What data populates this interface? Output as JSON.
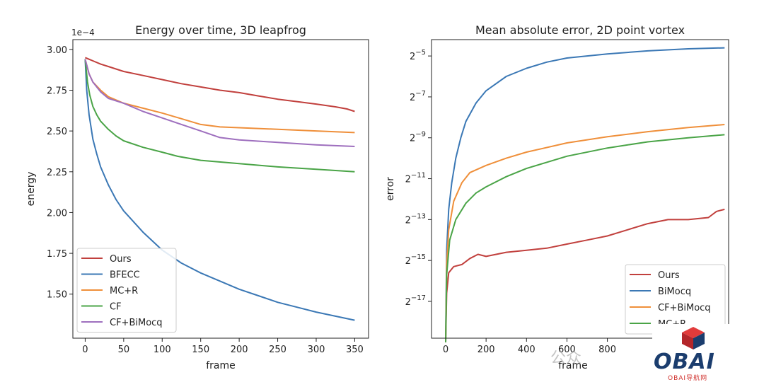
{
  "chart_data": [
    {
      "type": "line",
      "title": "Energy over time, 3D leapfrog",
      "xlabel": "frame",
      "ylabel": "energy",
      "y_multiplier_label": "1e−4",
      "xlim": [
        -16,
        368
      ],
      "ylim": [
        1.23,
        3.06
      ],
      "xticks": [
        0,
        50,
        100,
        150,
        200,
        250,
        300,
        350
      ],
      "xtick_labels": [
        "0",
        "50",
        "100",
        "150",
        "200",
        "250",
        "300",
        "350"
      ],
      "yticks": [
        1.5,
        1.75,
        2.0,
        2.25,
        2.5,
        2.75,
        3.0
      ],
      "ytick_labels": [
        "1.50",
        "1.75",
        "2.00",
        "2.25",
        "2.50",
        "2.75",
        "3.00"
      ],
      "legend_position": "lower-left",
      "series": [
        {
          "name": "Ours",
          "color": "#c1403d",
          "x": [
            0,
            10,
            20,
            30,
            50,
            75,
            100,
            125,
            150,
            175,
            200,
            225,
            250,
            275,
            300,
            325,
            340,
            350
          ],
          "y": [
            2.95,
            2.93,
            2.91,
            2.895,
            2.865,
            2.84,
            2.815,
            2.79,
            2.77,
            2.75,
            2.735,
            2.715,
            2.695,
            2.68,
            2.665,
            2.648,
            2.635,
            2.62
          ]
        },
        {
          "name": "BFECC",
          "color": "#3b78b5",
          "x": [
            0,
            2,
            5,
            10,
            15,
            20,
            30,
            40,
            50,
            75,
            100,
            125,
            150,
            175,
            200,
            225,
            250,
            275,
            300,
            325,
            350
          ],
          "y": [
            2.94,
            2.75,
            2.6,
            2.45,
            2.36,
            2.28,
            2.17,
            2.08,
            2.01,
            1.88,
            1.77,
            1.69,
            1.63,
            1.58,
            1.53,
            1.49,
            1.45,
            1.42,
            1.39,
            1.365,
            1.34
          ]
        },
        {
          "name": "MC+R",
          "color": "#ef8f3a",
          "x": [
            0,
            5,
            10,
            20,
            30,
            50,
            75,
            100,
            125,
            150,
            175,
            200,
            250,
            300,
            350
          ],
          "y": [
            2.94,
            2.85,
            2.8,
            2.75,
            2.71,
            2.67,
            2.64,
            2.61,
            2.575,
            2.54,
            2.525,
            2.52,
            2.51,
            2.5,
            2.49
          ]
        },
        {
          "name": "CF",
          "color": "#4aa447",
          "x": [
            0,
            3,
            6,
            10,
            15,
            20,
            30,
            40,
            50,
            75,
            100,
            120,
            150,
            200,
            250,
            300,
            350
          ],
          "y": [
            2.94,
            2.8,
            2.72,
            2.65,
            2.6,
            2.56,
            2.51,
            2.47,
            2.44,
            2.4,
            2.37,
            2.345,
            2.32,
            2.3,
            2.28,
            2.265,
            2.25
          ]
        },
        {
          "name": "CF+BiMocq",
          "color": "#9e6fbe",
          "x": [
            0,
            5,
            10,
            20,
            30,
            50,
            75,
            100,
            125,
            150,
            175,
            200,
            250,
            300,
            350
          ],
          "y": [
            2.94,
            2.85,
            2.8,
            2.74,
            2.7,
            2.67,
            2.62,
            2.58,
            2.54,
            2.5,
            2.46,
            2.445,
            2.43,
            2.415,
            2.405
          ]
        }
      ]
    },
    {
      "type": "line",
      "title": "Mean absolute error, 2D point vortex",
      "xlabel": "frame",
      "ylabel": "error",
      "y_scale": "log2",
      "xlim": [
        -70,
        1400
      ],
      "ylim_log2": [
        -18.8,
        -4.2
      ],
      "xticks": [
        0,
        200,
        400,
        600,
        800
      ],
      "xtick_labels": [
        "0",
        "200",
        "400",
        "600",
        "800"
      ],
      "ytick_exponents": [
        -5,
        -7,
        -9,
        -11,
        -13,
        -15,
        -17
      ],
      "ytick_base": "2",
      "ytick_labels": [
        "−5",
        "−7",
        "−9",
        "−11",
        "−13",
        "−15",
        "−17"
      ],
      "legend_position": "lower-right",
      "series": [
        {
          "name": "Ours",
          "color": "#c1403d",
          "x_log2y": [
            [
              0,
              -19
            ],
            [
              5,
              -16.6
            ],
            [
              15,
              -15.6
            ],
            [
              40,
              -15.3
            ],
            [
              80,
              -15.2
            ],
            [
              120,
              -14.9
            ],
            [
              160,
              -14.7
            ],
            [
              200,
              -14.8
            ],
            [
              300,
              -14.6
            ],
            [
              400,
              -14.5
            ],
            [
              500,
              -14.4
            ],
            [
              600,
              -14.2
            ],
            [
              700,
              -14.0
            ],
            [
              800,
              -13.8
            ],
            [
              900,
              -13.5
            ],
            [
              1000,
              -13.2
            ],
            [
              1100,
              -13.0
            ],
            [
              1200,
              -13.0
            ],
            [
              1300,
              -12.9
            ],
            [
              1340,
              -12.6
            ],
            [
              1380,
              -12.5
            ]
          ]
        },
        {
          "name": "BiMocq",
          "color": "#3b78b5",
          "x_log2y": [
            [
              0,
              -19
            ],
            [
              5,
              -14.5
            ],
            [
              15,
              -12.5
            ],
            [
              30,
              -11.2
            ],
            [
              50,
              -10.0
            ],
            [
              75,
              -9.0
            ],
            [
              100,
              -8.2
            ],
            [
              150,
              -7.3
            ],
            [
              200,
              -6.7
            ],
            [
              300,
              -6.0
            ],
            [
              400,
              -5.6
            ],
            [
              500,
              -5.3
            ],
            [
              600,
              -5.1
            ],
            [
              800,
              -4.9
            ],
            [
              1000,
              -4.75
            ],
            [
              1200,
              -4.65
            ],
            [
              1380,
              -4.6
            ]
          ]
        },
        {
          "name": "CF+BiMocq",
          "color": "#ef8f3a",
          "x_log2y": [
            [
              0,
              -19
            ],
            [
              5,
              -15.2
            ],
            [
              15,
              -13.5
            ],
            [
              40,
              -12.1
            ],
            [
              80,
              -11.2
            ],
            [
              120,
              -10.7
            ],
            [
              200,
              -10.35
            ],
            [
              300,
              -10.0
            ],
            [
              400,
              -9.7
            ],
            [
              600,
              -9.25
            ],
            [
              800,
              -8.95
            ],
            [
              1000,
              -8.7
            ],
            [
              1200,
              -8.5
            ],
            [
              1380,
              -8.35
            ]
          ]
        },
        {
          "name": "MC+R",
          "color": "#4aa447",
          "x_log2y": [
            [
              0,
              -19
            ],
            [
              5,
              -15.7
            ],
            [
              20,
              -14.0
            ],
            [
              50,
              -13.0
            ],
            [
              100,
              -12.2
            ],
            [
              150,
              -11.7
            ],
            [
              200,
              -11.4
            ],
            [
              300,
              -10.9
            ],
            [
              400,
              -10.5
            ],
            [
              500,
              -10.2
            ],
            [
              600,
              -9.9
            ],
            [
              800,
              -9.5
            ],
            [
              1000,
              -9.2
            ],
            [
              1200,
              -9.0
            ],
            [
              1380,
              -8.85
            ]
          ]
        }
      ]
    }
  ],
  "watermark": {
    "glyph": "公众",
    "logo_text": "OBAI",
    "logo_sub": "OBAI导航网"
  }
}
